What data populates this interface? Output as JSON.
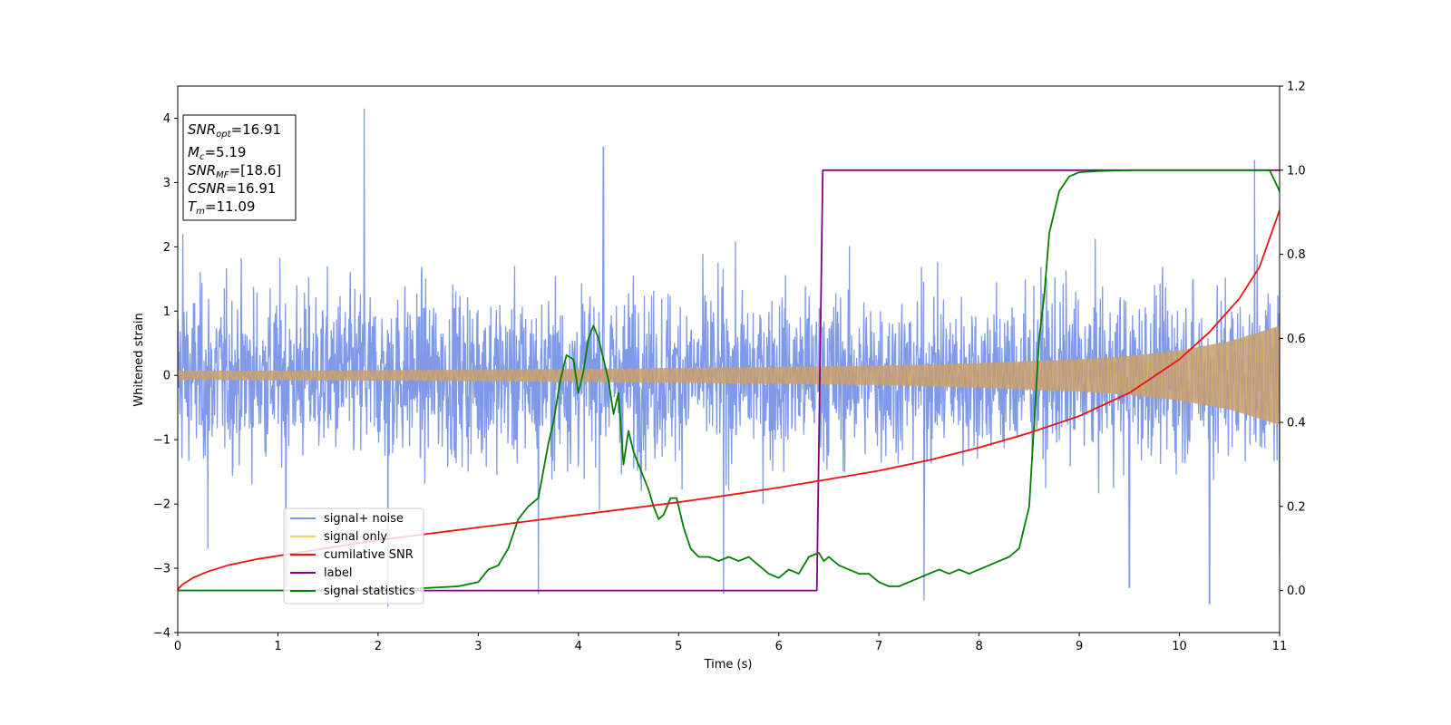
{
  "chart_data": {
    "type": "line",
    "title": "",
    "xlabel": "Time (s)",
    "ylabel": "Whitened strain",
    "xlim": [
      0,
      11
    ],
    "ylim": [
      -4,
      4.5
    ],
    "y2lim": [
      -0.1,
      1.2
    ],
    "grid": false,
    "xticks": [
      "0",
      "1",
      "2",
      "3",
      "4",
      "5",
      "6",
      "7",
      "8",
      "9",
      "10",
      "11"
    ],
    "yticks": [
      "−4",
      "−3",
      "−2",
      "−1",
      "0",
      "1",
      "2",
      "3",
      "4"
    ],
    "y2ticks": [
      "0.0",
      "0.2",
      "0.4",
      "0.6",
      "0.8",
      "1.0",
      "1.2"
    ],
    "legend": {
      "placement": "lower-left"
    },
    "annotation": {
      "snr_opt": {
        "main": "SNR",
        "sub": "opt",
        "value": "=16.91"
      },
      "mc": {
        "main": "M",
        "sub": "c",
        "value": "=5.19"
      },
      "snr_mf": {
        "main": "SNR",
        "sub": "MF",
        "value": "=[18.6]"
      },
      "csnr": {
        "main": "CSNR",
        "value": "=16.91"
      },
      "tm": {
        "main": "T",
        "sub": "m",
        "value": "=11.09"
      }
    },
    "series": [
      {
        "name": "signal+ noise",
        "axis": "left",
        "color": "#7895e8",
        "description_values": {
          "noise_band_amplitude": 1.7,
          "spikes": [
            [
              0.05,
              2.2
            ],
            [
              0.3,
              -2.7
            ],
            [
              1.08,
              -3.3
            ],
            [
              1.86,
              4.15
            ],
            [
              2.1,
              -3.6
            ],
            [
              3.6,
              -3.4
            ],
            [
              4.25,
              3.55
            ],
            [
              5.45,
              -3.4
            ],
            [
              7.45,
              -3.5
            ],
            [
              9.5,
              -3.3
            ],
            [
              10.3,
              -3.55
            ],
            [
              10.75,
              3.35
            ],
            [
              11.0,
              -2.8
            ]
          ]
        }
      },
      {
        "name": "signal only",
        "axis": "left",
        "color": "#c29e78",
        "envelope": {
          "x": [
            0,
            2,
            4,
            6,
            7,
            8,
            9,
            9.5,
            10,
            10.5,
            11
          ],
          "amp": [
            0.07,
            0.08,
            0.1,
            0.13,
            0.15,
            0.19,
            0.25,
            0.3,
            0.39,
            0.53,
            0.77
          ]
        }
      },
      {
        "name": "cumilative SNR",
        "axis": "right",
        "color": "#ee1111",
        "x": [
          0,
          0.05,
          0.15,
          0.3,
          0.5,
          0.8,
          1.2,
          1.6,
          2,
          2.5,
          3,
          3.5,
          4,
          4.5,
          5,
          5.5,
          6,
          6.5,
          7,
          7.5,
          8,
          8.5,
          9,
          9.5,
          10,
          10.3,
          10.6,
          10.8,
          11
        ],
        "y": [
          0.003,
          0.015,
          0.03,
          0.045,
          0.06,
          0.075,
          0.09,
          0.105,
          0.12,
          0.135,
          0.15,
          0.165,
          0.18,
          0.195,
          0.21,
          0.227,
          0.245,
          0.265,
          0.285,
          0.31,
          0.34,
          0.375,
          0.415,
          0.47,
          0.55,
          0.615,
          0.695,
          0.77,
          0.905
        ]
      },
      {
        "name": "label",
        "axis": "right",
        "color": "#800080",
        "x": [
          0,
          6.38,
          6.44,
          11
        ],
        "y": [
          0,
          0,
          1,
          1
        ]
      },
      {
        "name": "signal statistics",
        "axis": "right",
        "color": "#008000",
        "x": [
          0,
          1,
          2,
          2.4,
          2.8,
          3.0,
          3.1,
          3.2,
          3.3,
          3.4,
          3.5,
          3.6,
          3.7,
          3.75,
          3.82,
          3.88,
          3.95,
          4.0,
          4.05,
          4.1,
          4.15,
          4.2,
          4.3,
          4.35,
          4.4,
          4.45,
          4.5,
          4.55,
          4.6,
          4.7,
          4.75,
          4.8,
          4.85,
          4.92,
          4.98,
          5.05,
          5.12,
          5.2,
          5.3,
          5.4,
          5.5,
          5.6,
          5.7,
          5.8,
          5.9,
          6.0,
          6.1,
          6.2,
          6.3,
          6.4,
          6.45,
          6.5,
          6.6,
          6.7,
          6.8,
          6.9,
          7.0,
          7.1,
          7.2,
          7.3,
          7.4,
          7.5,
          7.6,
          7.7,
          7.8,
          7.9,
          8.0,
          8.1,
          8.2,
          8.3,
          8.4,
          8.45,
          8.5,
          8.55,
          8.6,
          8.65,
          8.7,
          8.8,
          8.9,
          9.0,
          9.2,
          9.5,
          10,
          10.5,
          10.9,
          11
        ],
        "y": [
          0,
          0,
          0.002,
          0.005,
          0.01,
          0.02,
          0.05,
          0.06,
          0.1,
          0.17,
          0.2,
          0.22,
          0.35,
          0.4,
          0.5,
          0.56,
          0.55,
          0.47,
          0.52,
          0.6,
          0.63,
          0.6,
          0.5,
          0.42,
          0.47,
          0.3,
          0.38,
          0.33,
          0.3,
          0.24,
          0.2,
          0.17,
          0.18,
          0.22,
          0.22,
          0.15,
          0.1,
          0.08,
          0.08,
          0.07,
          0.08,
          0.07,
          0.08,
          0.06,
          0.04,
          0.03,
          0.05,
          0.04,
          0.08,
          0.09,
          0.07,
          0.08,
          0.06,
          0.05,
          0.04,
          0.04,
          0.02,
          0.01,
          0.01,
          0.02,
          0.03,
          0.04,
          0.05,
          0.04,
          0.05,
          0.04,
          0.05,
          0.06,
          0.07,
          0.08,
          0.1,
          0.15,
          0.2,
          0.4,
          0.6,
          0.7,
          0.85,
          0.95,
          0.985,
          0.995,
          0.998,
          1.0,
          1.0,
          1.0,
          1.0,
          0.95
        ]
      }
    ]
  }
}
